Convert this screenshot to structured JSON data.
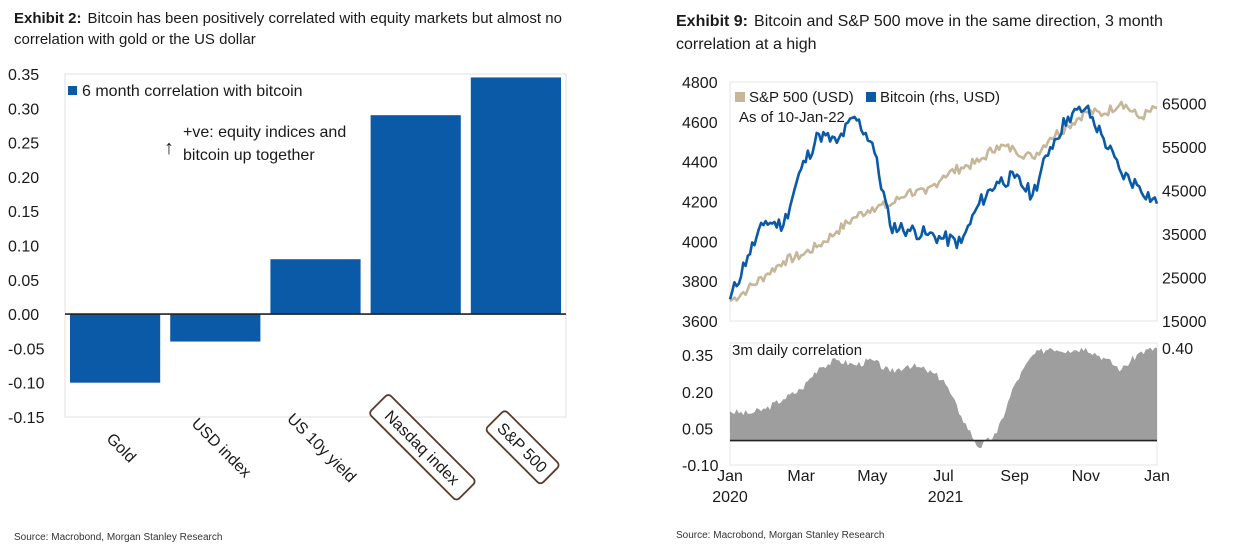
{
  "colors": {
    "blue": "#0b5aa7",
    "beige": "#c6b79a",
    "gray": "#9e9e9e",
    "axis": "#222222",
    "label_border": "#5a3a2a"
  },
  "left": {
    "exhibit": "Exhibit 2:",
    "title_line1": "Bitcoin has been positively correlated with equity markets but almost no",
    "title_line2": "correlation with gold or the US dollar",
    "legend": "6 month correlation with bitcoin",
    "annotation_arrow": "↑",
    "annotation_line1": "+ve: equity indices and",
    "annotation_line2": "bitcoin up together",
    "source": "Source: Macrobond, Morgan Stanley Research"
  },
  "right": {
    "exhibit": "Exhibit 9:",
    "title_line1": "Bitcoin and S&P 500 move in the same direction, 3 month",
    "title_line2": "correlation at a high",
    "legend_sp": "S&P 500 (USD)",
    "legend_btc": "Bitcoin (rhs, USD)",
    "as_of": "As of 10-Jan-22",
    "corr_label": "3m daily correlation",
    "source": "Source: Macrobond, Morgan Stanley Research"
  },
  "chart_data": [
    {
      "type": "bar",
      "series": [
        {
          "name": "6 month correlation with bitcoin",
          "values": [
            -0.1,
            -0.04,
            0.08,
            0.29,
            0.345
          ]
        }
      ],
      "categories": [
        "Gold",
        "USD index",
        "US 10y yield",
        "Nasdaq index",
        "S&P 500"
      ],
      "boxed_categories": [
        "Nasdaq index",
        "S&P 500"
      ],
      "ylim": [
        -0.15,
        0.35
      ],
      "yticks": [
        "0.35",
        "0.30",
        "0.25",
        "0.20",
        "0.15",
        "0.10",
        "0.05",
        "0.00",
        "-0.05",
        "-0.10",
        "-0.15"
      ],
      "legend_position": "top-left"
    },
    {
      "type": "line",
      "x_ticks": [
        "Jan",
        "Mar",
        "May",
        "Jul",
        "Sep",
        "Nov",
        "Jan"
      ],
      "x_year_labels": [
        "2020",
        "2021"
      ],
      "y_left": {
        "lim": [
          3600,
          4800
        ],
        "ticks": [
          "4800",
          "4600",
          "4400",
          "4200",
          "4000",
          "3800",
          "3600"
        ]
      },
      "y_right": {
        "lim": [
          15000,
          70000
        ],
        "ticks": [
          "65000",
          "55000",
          "45000",
          "35000",
          "25000",
          "15000"
        ]
      },
      "series": [
        {
          "name": "S&P 500 (USD)",
          "axis": "left",
          "x_month": [
            0,
            0.5,
            1,
            1.5,
            2,
            2.5,
            3,
            3.5,
            4,
            4.5,
            5,
            5.5,
            6,
            6.5,
            7,
            7.5,
            8,
            8.5,
            9,
            9.5,
            10,
            10.5,
            11,
            11.5,
            12
          ],
          "values": [
            3700,
            3760,
            3830,
            3900,
            3930,
            3980,
            4050,
            4120,
            4170,
            4180,
            4250,
            4240,
            4330,
            4370,
            4400,
            4480,
            4460,
            4420,
            4520,
            4580,
            4650,
            4640,
            4700,
            4620,
            4670
          ]
        },
        {
          "name": "Bitcoin (rhs, USD)",
          "axis": "right",
          "x_month": [
            0,
            0.5,
            1,
            1.5,
            2,
            2.5,
            3,
            3.5,
            4,
            4.5,
            5,
            5.5,
            6,
            6.5,
            7,
            7.5,
            8,
            8.5,
            9,
            9.5,
            10,
            10.5,
            11,
            11.5,
            12
          ],
          "values": [
            20000,
            30000,
            38000,
            37000,
            50000,
            58000,
            56000,
            62000,
            56000,
            37000,
            36000,
            35000,
            34000,
            33000,
            42000,
            47000,
            48000,
            44000,
            55000,
            62000,
            64000,
            57000,
            49000,
            46000,
            42000
          ]
        }
      ],
      "legend_position": "top-left"
    },
    {
      "type": "area",
      "title": "3m daily correlation",
      "ylim": [
        -0.1,
        0.4
      ],
      "yticks": [
        "0.35",
        "0.20",
        "0.05",
        "-0.10"
      ],
      "right_tick": "0.40",
      "x_month": [
        0,
        0.5,
        1,
        1.5,
        2,
        2.5,
        3,
        3.5,
        4,
        4.5,
        5,
        5.5,
        6,
        6.5,
        7,
        7.5,
        8,
        8.5,
        9,
        9.5,
        10,
        10.5,
        11,
        11.5,
        12
      ],
      "values": [
        0.12,
        0.11,
        0.13,
        0.17,
        0.21,
        0.3,
        0.33,
        0.31,
        0.33,
        0.28,
        0.31,
        0.29,
        0.25,
        0.1,
        -0.03,
        0.03,
        0.23,
        0.35,
        0.38,
        0.37,
        0.38,
        0.34,
        0.29,
        0.36,
        0.38
      ]
    }
  ]
}
